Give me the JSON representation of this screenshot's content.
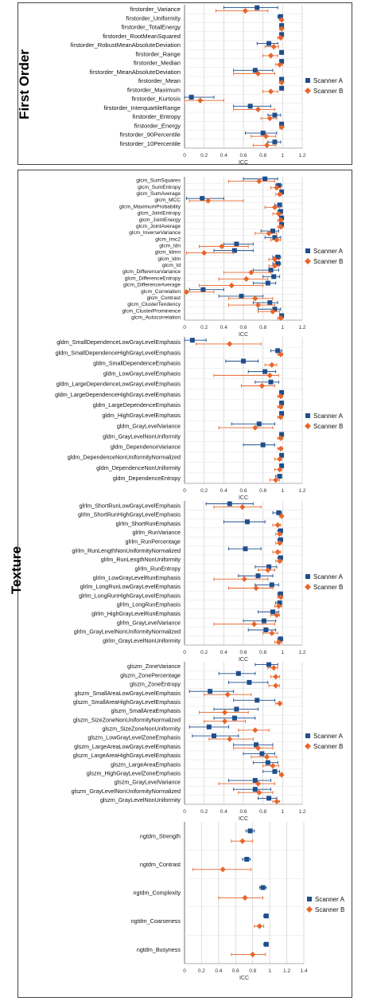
{
  "sections": {
    "first_order": "First Order",
    "texture": "Texture"
  },
  "colors": {
    "scanner_a": "#1f4e8c",
    "scanner_b": "#e8662b",
    "grid": "#c8c8c8",
    "axis": "#555555"
  },
  "chart_data": [
    {
      "id": "firstorder",
      "type": "scatter",
      "xlabel": "ICC",
      "xlim": [
        0,
        1.2
      ],
      "xticks": [
        0,
        0.2,
        0.4,
        0.6,
        0.8,
        1,
        1.2
      ],
      "tick_labels": [
        "0",
        "0.2",
        "0.4",
        "0.6",
        "0.8",
        "1",
        "1.2"
      ],
      "legend": [
        "Scanner A",
        "Scanner B"
      ],
      "legend_position": "right",
      "categories": [
        "firstorder_Variance",
        "firstorder_Uniformity",
        "firstorder_TotalEnergy",
        "firstorder_RootMeanSquared",
        "firstorder_RobustMeanAbsoluteDeviation",
        "firstorder_Range",
        "firstorder_Median",
        "firstorder_MeanAbsoluteDeviation",
        "firstorder_Mean",
        "firstorder_Maximum",
        "firstorder_Kurtosis",
        "firstorder_InterquartileRange",
        "firstorder_Entropy",
        "firstorder_Energy",
        "firstorder_90Percentile",
        "firstorder_10Percentile"
      ],
      "series": [
        {
          "name": "Scanner A",
          "values": [
            0.74,
            0.98,
            0.99,
            0.99,
            0.86,
            0.99,
            0.99,
            0.72,
            0.99,
            0.99,
            0.07,
            0.67,
            0.92,
            0.99,
            0.8,
            0.92
          ],
          "ci_low": [
            0.4,
            0.95,
            0.97,
            0.97,
            0.74,
            0.97,
            0.97,
            0.5,
            0.97,
            0.97,
            0.0,
            0.5,
            0.85,
            0.97,
            0.62,
            0.85
          ],
          "ci_high": [
            0.95,
            1.0,
            1.0,
            1.0,
            0.95,
            1.0,
            1.0,
            0.9,
            1.0,
            1.0,
            0.3,
            0.88,
            0.98,
            1.0,
            0.94,
            0.98
          ]
        },
        {
          "name": "Scanner B",
          "values": [
            0.62,
            0.99,
            0.99,
            0.98,
            0.91,
            0.88,
            0.97,
            0.75,
            0.99,
            0.88,
            0.16,
            0.75,
            0.87,
            0.99,
            0.83,
            0.84
          ],
          "ci_low": [
            0.32,
            0.97,
            0.97,
            0.95,
            0.82,
            0.8,
            0.93,
            0.5,
            0.97,
            0.8,
            0.0,
            0.5,
            0.78,
            0.97,
            0.68,
            0.7
          ],
          "ci_high": [
            0.85,
            1.0,
            1.0,
            1.0,
            0.96,
            0.95,
            1.0,
            0.92,
            1.0,
            0.95,
            0.4,
            0.92,
            0.94,
            1.0,
            0.93,
            0.93
          ]
        }
      ]
    },
    {
      "id": "glcm",
      "type": "scatter",
      "xlabel": "ICC",
      "xlim": [
        0,
        1.2
      ],
      "xticks": [
        0,
        0.2,
        0.4,
        0.6,
        0.8,
        1,
        1.2
      ],
      "tick_labels": [
        "0",
        "0.2",
        "0.4",
        "0.6",
        "0.8",
        "1",
        "1.2"
      ],
      "legend": [
        "Scanner A",
        "Scanner B"
      ],
      "legend_position": "right",
      "categories": [
        "glcm_SumSquares",
        "glcm_SumEntropy",
        "glcm_SumAverage",
        "glcm_MCC",
        "glcm_MaximumProbability",
        "glcm_JointEntropy",
        "glcm_JointEnergy",
        "glcm_JointAverage",
        "glcm_InverseVariance",
        "glcm_Imc2",
        "glcm_Idn",
        "glcm_Idmn",
        "glcm_Idm",
        "glcm_Id",
        "glcm_DifferenceVariance",
        "glcm_DifferenceEntropy",
        "glcm_DifferenceAverage",
        "glcm_Correlation",
        "glcm_Contrast",
        "glcm_ClusterTendency",
        "glcm_ClusterProminence",
        "glcm_Autocorrelation"
      ],
      "series": [
        {
          "name": "Scanner A",
          "values": [
            0.82,
            0.96,
            0.99,
            0.18,
            0.97,
            0.98,
            0.99,
            0.99,
            0.9,
            0.92,
            0.53,
            0.51,
            0.95,
            0.95,
            0.88,
            0.91,
            0.85,
            0.19,
            0.58,
            0.87,
            0.92,
            0.99
          ],
          "ci_low": [
            0.6,
            0.93,
            0.97,
            0.02,
            0.92,
            0.95,
            0.97,
            0.97,
            0.78,
            0.82,
            0.4,
            0.3,
            0.9,
            0.9,
            0.7,
            0.8,
            0.7,
            0.05,
            0.35,
            0.7,
            0.75,
            0.97
          ],
          "ci_high": [
            0.95,
            0.99,
            1.0,
            0.4,
            0.99,
            1.0,
            1.0,
            1.0,
            0.96,
            0.98,
            0.7,
            0.7,
            0.98,
            0.98,
            0.96,
            0.97,
            0.93,
            0.4,
            0.8,
            0.95,
            0.98,
            1.0
          ]
        },
        {
          "name": "Scanner B",
          "values": [
            0.76,
            0.94,
            0.97,
            0.24,
            0.92,
            0.96,
            0.98,
            0.98,
            0.86,
            0.94,
            0.38,
            0.2,
            0.92,
            0.92,
            0.68,
            0.63,
            0.48,
            0.02,
            0.72,
            0.75,
            0.9,
            0.98
          ],
          "ci_low": [
            0.45,
            0.88,
            0.93,
            0.05,
            0.82,
            0.9,
            0.95,
            0.95,
            0.72,
            0.88,
            0.15,
            0.02,
            0.86,
            0.86,
            0.4,
            0.35,
            0.15,
            0.0,
            0.45,
            0.45,
            0.75,
            0.95
          ],
          "ci_high": [
            0.92,
            0.98,
            0.99,
            0.6,
            0.97,
            0.99,
            1.0,
            1.0,
            0.94,
            0.98,
            0.65,
            0.5,
            0.96,
            0.96,
            0.88,
            0.85,
            0.8,
            0.3,
            0.9,
            0.92,
            0.97,
            1.0
          ]
        }
      ]
    },
    {
      "id": "gldm",
      "type": "scatter",
      "xlabel": "ICC",
      "xlim": [
        0,
        1.2
      ],
      "xticks": [
        0,
        0.2,
        0.4,
        0.6,
        0.8,
        1,
        1.2
      ],
      "tick_labels": [
        "0",
        "0.2",
        "0.4",
        "0.6",
        "0.8",
        "1",
        "1.2"
      ],
      "legend": [
        "Scanner A",
        "Scanner B"
      ],
      "legend_position": "right",
      "categories": [
        "gldm_SmallDependenceLowGrayLevelEmphasis",
        "gldm_SmallDependenceHighGrayLevelEmphasis",
        "gldm_SmallDependenceEmphasis",
        "gldm_LowGrayLevelEmphasis",
        "gldm_LargeDependenceLowGrayLevelEmphasis",
        "gldm_LargeDependenceHighGrayLevelEmphasis",
        "gldm_LargeDependenceEmphasis",
        "gldm_HighGrayLevelEmphasis",
        "gldm_GrayLevelVariance",
        "gldm_GrayLevelNonUniformity",
        "gldm_DependenceVariance",
        "gldm_DependenceNonUniformityNormalized",
        "gldm_DependenceNonUniformity",
        "gldm_DependenceEntropy"
      ],
      "series": [
        {
          "name": "Scanner A",
          "values": [
            0.08,
            0.95,
            0.6,
            0.82,
            0.88,
            0.99,
            0.99,
            0.99,
            0.76,
            0.99,
            0.8,
            0.99,
            0.99,
            0.97
          ],
          "ci_low": [
            0.0,
            0.88,
            0.42,
            0.65,
            0.72,
            0.97,
            0.97,
            0.97,
            0.48,
            0.97,
            0.6,
            0.97,
            0.97,
            0.93
          ],
          "ci_high": [
            0.22,
            0.99,
            0.75,
            0.93,
            0.96,
            1.0,
            1.0,
            1.0,
            0.92,
            1.0,
            0.92,
            1.0,
            1.0,
            0.99
          ]
        },
        {
          "name": "Scanner B",
          "values": [
            0.46,
            0.98,
            0.89,
            0.87,
            0.79,
            0.98,
            0.98,
            0.98,
            0.72,
            0.98,
            0.98,
            0.97,
            0.97,
            0.93
          ],
          "ci_low": [
            0.12,
            0.95,
            0.82,
            0.3,
            0.58,
            0.95,
            0.95,
            0.95,
            0.35,
            0.95,
            0.95,
            0.92,
            0.92,
            0.87
          ],
          "ci_high": [
            0.78,
            1.0,
            0.94,
            0.96,
            0.92,
            1.0,
            1.0,
            1.0,
            0.9,
            1.0,
            1.0,
            0.99,
            0.99,
            0.97
          ]
        }
      ]
    },
    {
      "id": "glrlm",
      "type": "scatter",
      "xlabel": "ICC",
      "xlim": [
        0,
        1.2
      ],
      "xticks": [
        0,
        0.2,
        0.4,
        0.6,
        0.8,
        1,
        1.2
      ],
      "tick_labels": [
        "0",
        "0.2",
        "0.4",
        "0.6",
        "0.8",
        "1",
        "1.2"
      ],
      "legend": [
        "Scanner A",
        "Scanner B"
      ],
      "legend_position": "right",
      "categories": [
        "glrlm_ShortRunLowGrayLevelEmphasis",
        "glrlm_ShortRunHighGrayLevelEmphasis",
        "glrlm_ShortRunEmphasis",
        "glrlm_RunVariance",
        "glrlm_RunPercentage",
        "glrlm_RunLengthNonUniformityNormalized",
        "glrlm_RunLengthNonUniformity",
        "glrlm_RunEntropy",
        "glrlm_LowGrayLevelRunEmphasis",
        "glrlm_LongRunLowGrayLevelEmphasis",
        "glrlm_LongRunHighGrayLevelEmphasis",
        "glrlm_LongRunEmphasis",
        "glrlm_HighGrayLevelRunEmphasis",
        "glrlm_GrayLevelVariance",
        "glrlm_GrayLevelNonUniformityNormalized",
        "glrlm_GrayLevelNonUniformity"
      ],
      "series": [
        {
          "name": "Scanner A",
          "values": [
            0.46,
            0.96,
            0.64,
            0.98,
            0.98,
            0.62,
            0.98,
            0.86,
            0.75,
            0.89,
            0.98,
            0.97,
            0.9,
            0.81,
            0.83,
            0.98
          ],
          "ci_low": [
            0.22,
            0.9,
            0.4,
            0.95,
            0.95,
            0.45,
            0.95,
            0.72,
            0.55,
            0.72,
            0.95,
            0.93,
            0.75,
            0.6,
            0.65,
            0.95
          ],
          "ci_high": [
            0.7,
            0.99,
            0.82,
            1.0,
            1.0,
            0.78,
            1.0,
            0.94,
            0.9,
            0.96,
            1.0,
            0.99,
            0.96,
            0.93,
            0.93,
            1.0
          ]
        },
        {
          "name": "Scanner B",
          "values": [
            0.59,
            0.99,
            0.95,
            0.97,
            0.97,
            0.95,
            0.97,
            0.85,
            0.61,
            0.73,
            0.98,
            0.96,
            0.94,
            0.71,
            0.89,
            0.96
          ],
          "ci_low": [
            0.3,
            0.97,
            0.9,
            0.93,
            0.93,
            0.9,
            0.93,
            0.75,
            0.3,
            0.45,
            0.95,
            0.92,
            0.88,
            0.3,
            0.8,
            0.92
          ],
          "ci_high": [
            0.78,
            1.0,
            0.98,
            0.99,
            0.99,
            0.98,
            0.99,
            0.92,
            0.85,
            0.9,
            1.0,
            0.99,
            0.97,
            0.92,
            0.95,
            0.99
          ]
        }
      ]
    },
    {
      "id": "glszm",
      "type": "scatter",
      "xlabel": "ICC",
      "xlim": [
        0,
        1.2
      ],
      "xticks": [
        0,
        0.2,
        0.4,
        0.6,
        0.8,
        1,
        1.2
      ],
      "tick_labels": [
        "0",
        "0.2",
        "0.4",
        "0.6",
        "0.8",
        "1",
        "1.2"
      ],
      "legend": [
        "Scanner A",
        "Scanner B"
      ],
      "legend_position": "right",
      "categories": [
        "glszm_ZoneVariance",
        "glszm_ZonePercentage",
        "glszm_ZoneEntropy",
        "glszm_SmallAreaLowGrayLevelEmphasis",
        "glszm_SmallAreaHighGrayLevelEmphasis",
        "glszm_SmallAreaEmphasis",
        "glszm_SizeZoneNonUniformityNormalized",
        "glszm_SizeZoneNonUniformity",
        "glszm_LowGrayLevelZoneEmphasis",
        "glszm_LargeAreaLowGrayLevelEmphasis",
        "glszm_LargeAreaHighGrayLevelEmphasis",
        "glszm_LargeAreaEmphasis",
        "glszm_HighGrayLevelZoneEmphasis",
        "glszm_GrayLevelVariance",
        "glszm_GrayLevelNonUniformityNormalized",
        "glszm_GrayLevelNonUniformity"
      ],
      "series": [
        {
          "name": "Scanner A",
          "values": [
            0.86,
            0.55,
            0.66,
            0.26,
            0.74,
            0.53,
            0.51,
            0.25,
            0.3,
            0.73,
            0.79,
            0.85,
            0.92,
            0.72,
            0.72,
            0.86
          ],
          "ci_low": [
            0.72,
            0.35,
            0.45,
            0.05,
            0.5,
            0.3,
            0.3,
            0.05,
            0.08,
            0.5,
            0.6,
            0.7,
            0.8,
            0.45,
            0.5,
            0.75
          ],
          "ci_high": [
            0.95,
            0.72,
            0.85,
            0.5,
            0.92,
            0.75,
            0.72,
            0.45,
            0.55,
            0.9,
            0.92,
            0.95,
            0.97,
            0.88,
            0.88,
            0.94
          ]
        },
        {
          "name": "Scanner B",
          "values": [
            0.91,
            0.93,
            0.93,
            0.44,
            0.97,
            0.41,
            0.41,
            0.72,
            0.46,
            0.75,
            0.84,
            0.9,
            0.99,
            0.75,
            0.76,
            0.94
          ],
          "ci_low": [
            0.85,
            0.88,
            0.86,
            0.2,
            0.93,
            0.15,
            0.2,
            0.55,
            0.25,
            0.5,
            0.68,
            0.8,
            0.97,
            0.35,
            0.55,
            0.9
          ],
          "ci_high": [
            0.95,
            0.97,
            0.97,
            0.68,
            0.99,
            0.65,
            0.62,
            0.86,
            0.7,
            0.9,
            0.94,
            0.96,
            1.0,
            0.92,
            0.9,
            0.97
          ]
        }
      ]
    },
    {
      "id": "ngtdm",
      "type": "scatter",
      "xlabel": "ICC",
      "xlim": [
        0,
        1.4
      ],
      "xticks": [
        0,
        0.2,
        0.4,
        0.6,
        0.8,
        1,
        1.2,
        1.4
      ],
      "tick_labels": [
        "0",
        "0.2",
        "0.4",
        "0.6",
        "0.8",
        "1",
        "1.2",
        "1.4"
      ],
      "legend": [
        "Scanner A",
        "Scanner B"
      ],
      "legend_position": "right",
      "categories": [
        "ngtdm_Strength",
        "ngtdm_Contrast",
        "ngtdm_Complexity",
        "ngtdm_Coarseness",
        "ngtdm_Busyness"
      ],
      "series": [
        {
          "name": "Scanner A",
          "values": [
            0.77,
            0.73,
            0.92,
            0.96,
            0.96
          ],
          "ci_low": [
            0.72,
            0.68,
            0.88,
            0.93,
            0.93
          ],
          "ci_high": [
            0.82,
            0.77,
            0.96,
            0.98,
            0.98
          ]
        },
        {
          "name": "Scanner B",
          "values": [
            0.68,
            0.45,
            0.71,
            0.88,
            0.8
          ],
          "ci_low": [
            0.55,
            0.1,
            0.4,
            0.82,
            0.55
          ],
          "ci_high": [
            0.8,
            0.78,
            0.92,
            0.93,
            0.95
          ]
        }
      ]
    }
  ]
}
